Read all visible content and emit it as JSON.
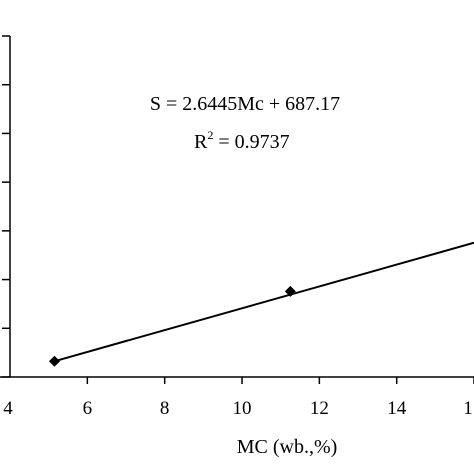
{
  "chart_data": {
    "type": "scatter",
    "xlabel": "MC (wb.,%)",
    "ylabel": "",
    "title": "",
    "xlim": [
      4,
      16
    ],
    "x_ticks": [
      "4",
      "6",
      "8",
      "10",
      "12",
      "14",
      "1"
    ],
    "y_tick_count": 8,
    "grid": false,
    "series": [
      {
        "points": [
          {
            "x": 5.15,
            "y": 700.8
          },
          {
            "x": 11.25,
            "y": 717.7
          }
        ],
        "marker": "diamond",
        "color": "#000000"
      }
    ],
    "trendline": {
      "slope": 2.6445,
      "intercept": 687.17,
      "x_range": [
        5.1,
        16
      ]
    },
    "annotations": {
      "equation": "S = 2.6445Mc + 687.17",
      "r2_prefix": "R",
      "r2_sup": "2",
      "r2_rest": " = 0.9737"
    }
  }
}
